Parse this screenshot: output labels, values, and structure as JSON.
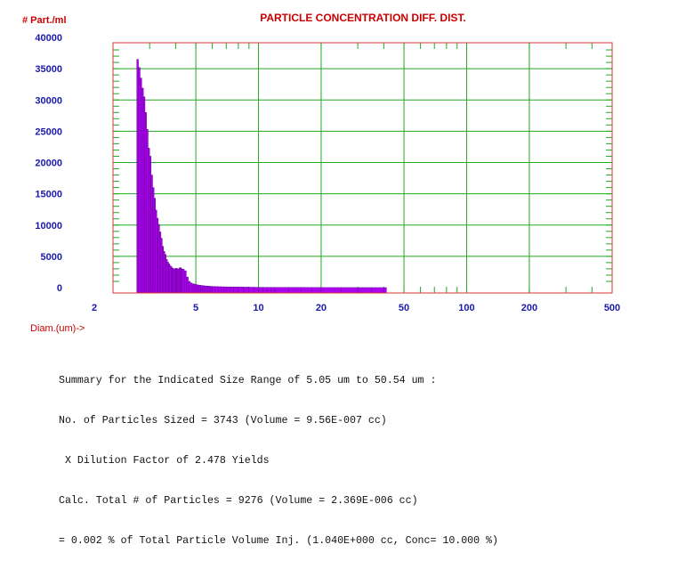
{
  "chart_data": {
    "type": "bar",
    "title": "PARTICLE CONCENTRATION DIFF. DIST.",
    "ylabel": "# Part./ml",
    "xlabel": "Diam.(um)->",
    "x_scale": "log",
    "xlim": [
      2,
      500
    ],
    "ylim": [
      0,
      40000
    ],
    "y_ticks": [
      0,
      5000,
      10000,
      15000,
      20000,
      25000,
      30000,
      35000,
      40000
    ],
    "x_ticks": [
      2,
      5,
      10,
      20,
      50,
      100,
      200,
      500
    ],
    "grid": true,
    "colors": {
      "bars": "#aa00ee",
      "bar_edge": "#5a0088",
      "grid": "#22aa22",
      "frame": "#dd3333",
      "title": "#cc0000",
      "axis_text": "#1a1aaa"
    },
    "x": [
      2.6,
      2.65,
      2.7,
      2.75,
      2.8,
      2.85,
      2.9,
      2.95,
      3.0,
      3.05,
      3.1,
      3.15,
      3.2,
      3.25,
      3.3,
      3.35,
      3.4,
      3.45,
      3.5,
      3.55,
      3.6,
      3.65,
      3.7,
      3.75,
      3.8,
      3.85,
      3.9,
      3.95,
      4.0,
      4.05,
      4.1,
      4.15,
      4.2,
      4.25,
      4.3,
      4.4,
      4.5,
      4.6,
      4.7,
      4.8,
      4.9,
      5.0,
      5.1,
      5.2,
      5.3,
      5.4,
      5.5,
      5.6,
      5.7,
      5.8,
      5.9,
      6.0,
      6.2,
      6.4,
      6.6,
      6.8,
      7.0,
      7.3,
      7.6,
      8.0,
      8.5,
      9.0,
      9.5,
      10,
      10.5,
      11,
      11.5,
      12,
      14,
      16,
      18,
      20,
      25,
      30,
      35,
      40
    ],
    "values": [
      36500,
      35200,
      33500,
      31900,
      30500,
      28000,
      25300,
      22300,
      21000,
      18000,
      16000,
      14300,
      12400,
      11100,
      10100,
      8900,
      7900,
      6600,
      5800,
      5300,
      4500,
      4100,
      3800,
      3500,
      3300,
      3100,
      3000,
      3050,
      3100,
      3050,
      3000,
      3150,
      3200,
      3050,
      2950,
      2700,
      1700,
      1000,
      750,
      620,
      560,
      480,
      420,
      380,
      340,
      310,
      280,
      260,
      240,
      220,
      200,
      190,
      170,
      150,
      140,
      130,
      120,
      110,
      100,
      90,
      80,
      70,
      60,
      55,
      50,
      45,
      40,
      35,
      30,
      25,
      20,
      15,
      12,
      10,
      8,
      6
    ]
  },
  "summary": {
    "line1": "Summary for the Indicated Size Range of 5.05 um to 50.54 um :",
    "line2": "No. of Particles Sized = 3743 (Volume = 9.56E-007 cc)",
    "line3": " X Dilution Factor of 2.478 Yields",
    "line4": "Calc. Total # of Particles = 9276 (Volume = 2.369E-006 cc)",
    "line5": "= 0.002 % of Total Particle Volume Inj. (1.040E+000 cc, Conc= 10.000 %)"
  }
}
